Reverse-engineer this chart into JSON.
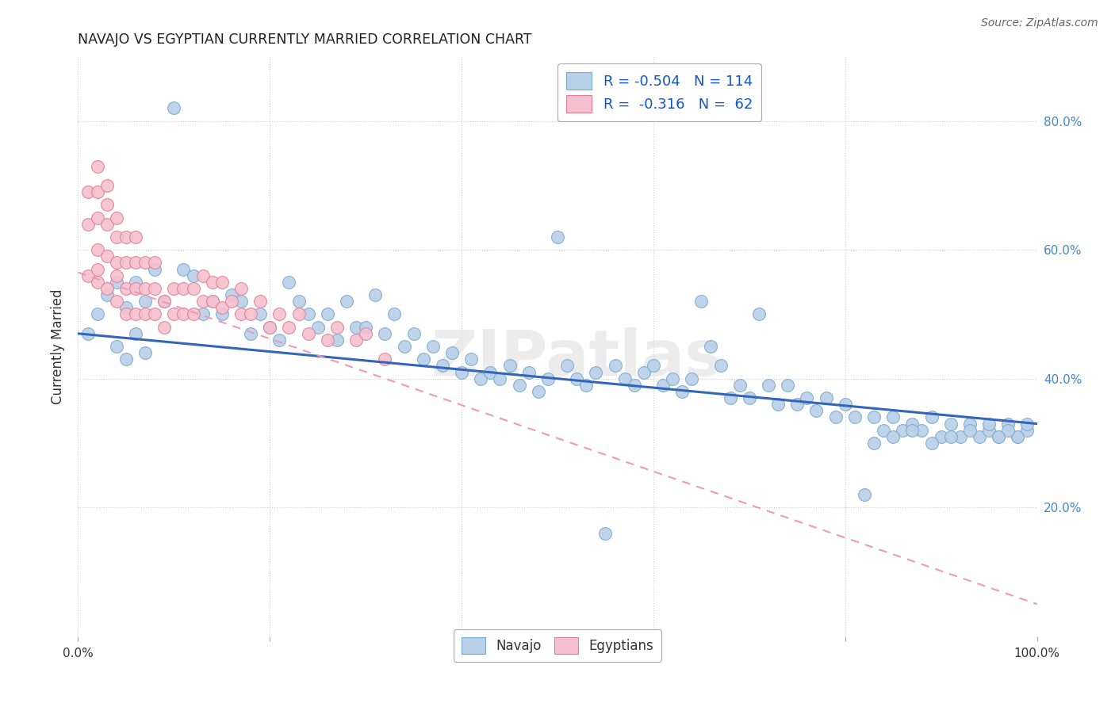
{
  "title": "NAVAJO VS EGYPTIAN CURRENTLY MARRIED CORRELATION CHART",
  "source": "Source: ZipAtlas.com",
  "ylabel": "Currently Married",
  "xlim": [
    0.0,
    1.0
  ],
  "ylim": [
    0.0,
    0.9
  ],
  "xtick_vals": [
    0.0,
    0.2,
    0.4,
    0.6,
    0.8,
    1.0
  ],
  "xtick_labels": [
    "0.0%",
    "",
    "",
    "",
    "",
    "100.0%"
  ],
  "ytick_vals": [
    0.2,
    0.4,
    0.6,
    0.8
  ],
  "ytick_labels_right": [
    "20.0%",
    "40.0%",
    "60.0%",
    "80.0%"
  ],
  "navajo_color": "#b8d0e8",
  "navajo_edge": "#7aaad0",
  "egyptian_color": "#f5c0cf",
  "egyptian_edge": "#e08098",
  "trend_navajo_color": "#3366bb",
  "trend_egyptian_color": "#ee99bb",
  "legend_navajo_label": "R = -0.504   N = 114",
  "legend_egyptian_label": "R =  -0.316   N =  62",
  "watermark": "ZIPatlas",
  "navajo_seed": 42,
  "egyptian_seed": 7,
  "navajo_x": [
    0.01,
    0.02,
    0.03,
    0.04,
    0.04,
    0.05,
    0.05,
    0.06,
    0.06,
    0.07,
    0.07,
    0.08,
    0.09,
    0.1,
    0.11,
    0.12,
    0.13,
    0.14,
    0.15,
    0.16,
    0.17,
    0.18,
    0.19,
    0.2,
    0.21,
    0.22,
    0.23,
    0.24,
    0.25,
    0.26,
    0.27,
    0.28,
    0.29,
    0.3,
    0.31,
    0.32,
    0.33,
    0.34,
    0.35,
    0.36,
    0.37,
    0.38,
    0.39,
    0.4,
    0.41,
    0.42,
    0.43,
    0.44,
    0.45,
    0.46,
    0.47,
    0.48,
    0.49,
    0.5,
    0.51,
    0.52,
    0.53,
    0.54,
    0.55,
    0.56,
    0.57,
    0.58,
    0.59,
    0.6,
    0.61,
    0.62,
    0.63,
    0.64,
    0.65,
    0.66,
    0.67,
    0.68,
    0.69,
    0.7,
    0.71,
    0.72,
    0.73,
    0.74,
    0.75,
    0.76,
    0.77,
    0.78,
    0.79,
    0.8,
    0.81,
    0.82,
    0.83,
    0.84,
    0.85,
    0.86,
    0.87,
    0.88,
    0.89,
    0.9,
    0.91,
    0.92,
    0.93,
    0.94,
    0.95,
    0.96,
    0.97,
    0.98,
    0.99,
    0.99,
    0.98,
    0.97,
    0.96,
    0.95,
    0.93,
    0.91,
    0.89,
    0.87,
    0.85,
    0.83
  ],
  "navajo_y_base": [
    0.47,
    0.5,
    0.53,
    0.55,
    0.45,
    0.51,
    0.43,
    0.55,
    0.47,
    0.52,
    0.44,
    0.57,
    0.52,
    0.82,
    0.57,
    0.56,
    0.5,
    0.52,
    0.5,
    0.53,
    0.52,
    0.47,
    0.5,
    0.48,
    0.46,
    0.55,
    0.52,
    0.5,
    0.48,
    0.5,
    0.46,
    0.52,
    0.48,
    0.48,
    0.53,
    0.47,
    0.5,
    0.45,
    0.47,
    0.43,
    0.45,
    0.42,
    0.44,
    0.41,
    0.43,
    0.4,
    0.41,
    0.4,
    0.42,
    0.39,
    0.41,
    0.38,
    0.4,
    0.62,
    0.42,
    0.4,
    0.39,
    0.41,
    0.16,
    0.42,
    0.4,
    0.39,
    0.41,
    0.42,
    0.39,
    0.4,
    0.38,
    0.4,
    0.52,
    0.45,
    0.42,
    0.37,
    0.39,
    0.37,
    0.5,
    0.39,
    0.36,
    0.39,
    0.36,
    0.37,
    0.35,
    0.37,
    0.34,
    0.36,
    0.34,
    0.22,
    0.34,
    0.32,
    0.34,
    0.32,
    0.33,
    0.32,
    0.34,
    0.31,
    0.33,
    0.31,
    0.33,
    0.31,
    0.32,
    0.31,
    0.33,
    0.31,
    0.32,
    0.33,
    0.31,
    0.32,
    0.31,
    0.33,
    0.32,
    0.31,
    0.3,
    0.32,
    0.31,
    0.3
  ],
  "egyptian_x": [
    0.01,
    0.01,
    0.01,
    0.02,
    0.02,
    0.02,
    0.02,
    0.02,
    0.02,
    0.03,
    0.03,
    0.03,
    0.03,
    0.03,
    0.04,
    0.04,
    0.04,
    0.04,
    0.04,
    0.05,
    0.05,
    0.05,
    0.05,
    0.06,
    0.06,
    0.06,
    0.06,
    0.07,
    0.07,
    0.07,
    0.08,
    0.08,
    0.08,
    0.09,
    0.09,
    0.1,
    0.1,
    0.11,
    0.11,
    0.12,
    0.12,
    0.13,
    0.13,
    0.14,
    0.14,
    0.15,
    0.15,
    0.16,
    0.17,
    0.17,
    0.18,
    0.19,
    0.2,
    0.21,
    0.22,
    0.23,
    0.24,
    0.26,
    0.27,
    0.29,
    0.3,
    0.32
  ],
  "egyptian_y": [
    0.56,
    0.64,
    0.69,
    0.55,
    0.6,
    0.65,
    0.69,
    0.73,
    0.57,
    0.54,
    0.59,
    0.64,
    0.67,
    0.7,
    0.52,
    0.56,
    0.62,
    0.65,
    0.58,
    0.5,
    0.54,
    0.58,
    0.62,
    0.5,
    0.54,
    0.58,
    0.62,
    0.5,
    0.54,
    0.58,
    0.5,
    0.54,
    0.58,
    0.48,
    0.52,
    0.5,
    0.54,
    0.5,
    0.54,
    0.5,
    0.54,
    0.52,
    0.56,
    0.52,
    0.55,
    0.51,
    0.55,
    0.52,
    0.5,
    0.54,
    0.5,
    0.52,
    0.48,
    0.5,
    0.48,
    0.5,
    0.47,
    0.46,
    0.48,
    0.46,
    0.47,
    0.43
  ]
}
